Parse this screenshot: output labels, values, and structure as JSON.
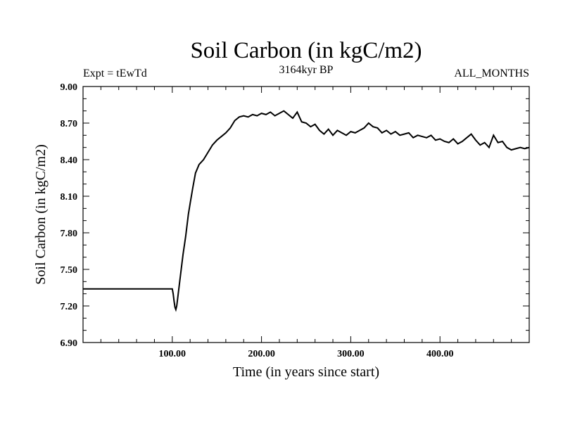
{
  "chart_data": {
    "type": "line",
    "title": "Soil Carbon (in kgC/m2)",
    "subtitle_left": "Expt = tEwTd",
    "subtitle_center": "3164kyr BP",
    "subtitle_right": "ALL_MONTHS",
    "xlabel": "Time (in years since start)",
    "ylabel": "Soil Carbon (in kgC/m2)",
    "xlim": [
      0,
      500
    ],
    "ylim": [
      6.9,
      9.0
    ],
    "xticks": [
      100,
      200,
      300,
      400
    ],
    "xtick_labels": [
      "100.00",
      "200.00",
      "300.00",
      "400.00"
    ],
    "yticks": [
      6.9,
      7.2,
      7.5,
      7.8,
      8.1,
      8.4,
      8.7,
      9.0
    ],
    "ytick_labels": [
      "6.90",
      "7.20",
      "7.50",
      "7.80",
      "8.10",
      "8.40",
      "8.70",
      "9.00"
    ],
    "grid": false,
    "line_color": "#000000",
    "series": [
      {
        "x": [
          0,
          100,
          101,
          102,
          103,
          104,
          105,
          106,
          108,
          110,
          112,
          115,
          118,
          120,
          123,
          126,
          130,
          135,
          140,
          145,
          150,
          155,
          160,
          165,
          170,
          175,
          180,
          185,
          190,
          195,
          200,
          205,
          210,
          215,
          220,
          225,
          230,
          235,
          240,
          245,
          250,
          255,
          260,
          265,
          270,
          275,
          280,
          285,
          290,
          295,
          300,
          305,
          310,
          315,
          320,
          325,
          330,
          335,
          340,
          345,
          350,
          355,
          360,
          365,
          370,
          375,
          380,
          385,
          390,
          395,
          400,
          405,
          410,
          415,
          420,
          425,
          430,
          435,
          440,
          445,
          450,
          455,
          460,
          465,
          470,
          475,
          480,
          485,
          490,
          495,
          500
        ],
        "y": [
          7.34,
          7.34,
          7.3,
          7.24,
          7.19,
          7.17,
          7.2,
          7.26,
          7.38,
          7.5,
          7.62,
          7.77,
          7.95,
          8.04,
          8.17,
          8.29,
          8.36,
          8.4,
          8.46,
          8.52,
          8.56,
          8.59,
          8.62,
          8.66,
          8.72,
          8.75,
          8.76,
          8.75,
          8.77,
          8.76,
          8.78,
          8.77,
          8.79,
          8.76,
          8.78,
          8.8,
          8.77,
          8.74,
          8.79,
          8.71,
          8.7,
          8.67,
          8.69,
          8.64,
          8.61,
          8.65,
          8.6,
          8.64,
          8.62,
          8.6,
          8.63,
          8.62,
          8.64,
          8.66,
          8.7,
          8.67,
          8.66,
          8.62,
          8.64,
          8.61,
          8.63,
          8.6,
          8.61,
          8.62,
          8.58,
          8.6,
          8.59,
          8.58,
          8.6,
          8.56,
          8.57,
          8.55,
          8.54,
          8.57,
          8.53,
          8.55,
          8.58,
          8.61,
          8.56,
          8.52,
          8.54,
          8.5,
          8.6,
          8.54,
          8.55,
          8.5,
          8.48,
          8.49,
          8.5,
          8.49,
          8.5
        ]
      }
    ]
  }
}
